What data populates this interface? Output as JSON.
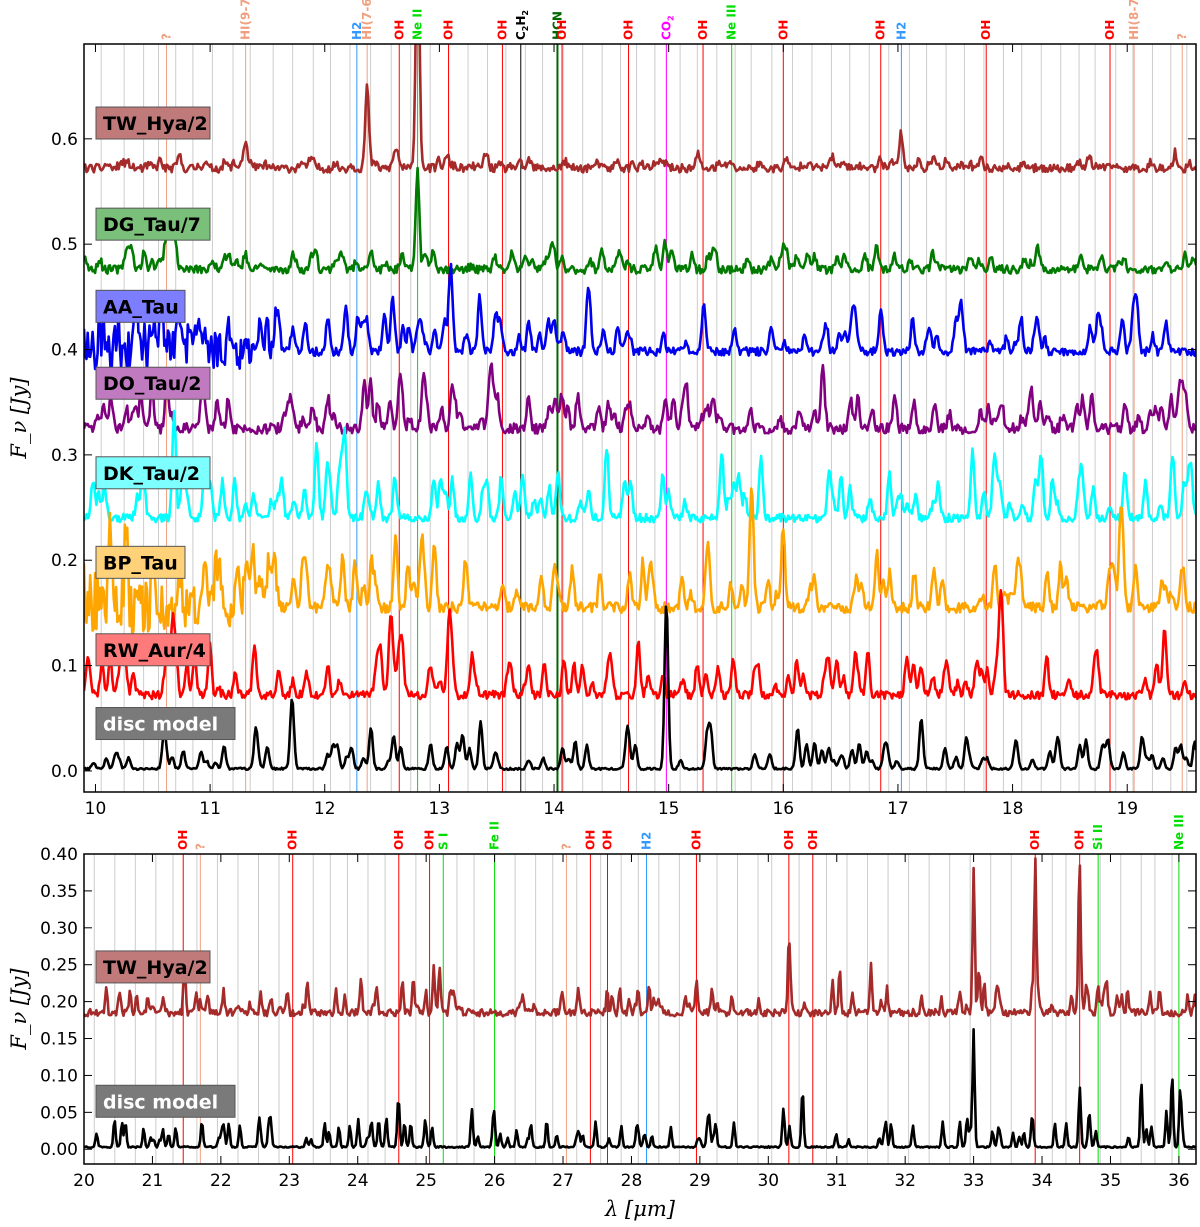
{
  "panels": [
    {
      "name": "top",
      "xlim": [
        9.9,
        19.6
      ],
      "ylim": [
        -0.02,
        0.69
      ],
      "xticks": [
        10,
        11,
        12,
        13,
        14,
        15,
        16,
        17,
        18,
        19
      ],
      "yticks": [
        0.0,
        0.1,
        0.2,
        0.3,
        0.4,
        0.5,
        0.6
      ],
      "ytick_labels": [
        "0.0",
        "0.1",
        "0.2",
        "0.3",
        "0.4",
        "0.5",
        "0.6"
      ],
      "ylabel": "F_ν [Jy]",
      "xlabel": "",
      "grey_lines": [
        10.05,
        10.25,
        10.42,
        10.55,
        10.7,
        10.85,
        11.02,
        11.2,
        11.35,
        11.55,
        11.72,
        11.9,
        12.05,
        12.22,
        12.4,
        12.58,
        12.75,
        12.92,
        13.08,
        13.25,
        13.42,
        13.58,
        13.75,
        13.9,
        14.08,
        14.25,
        14.42,
        14.58,
        14.72,
        14.88,
        15.1,
        15.25,
        15.42,
        15.58,
        15.72,
        15.9,
        16.08,
        16.25,
        16.42,
        16.58,
        16.75,
        16.92,
        17.1,
        17.25,
        17.42,
        17.58,
        17.75,
        17.92,
        18.08,
        18.25,
        18.42,
        18.58,
        18.72,
        18.9,
        19.05,
        19.22,
        19.38,
        19.52
      ],
      "species": [
        {
          "label": "?",
          "x": 10.62,
          "color": "#f0a080"
        },
        {
          "label": "HI(9-7)",
          "x": 11.31,
          "color": "#f0a080"
        },
        {
          "label": "H2",
          "x": 12.28,
          "color": "#3399ff"
        },
        {
          "label": "HI(7-6)",
          "x": 12.37,
          "color": "#f0a080"
        },
        {
          "label": "OH",
          "x": 12.65,
          "color": "#ff0000"
        },
        {
          "label": "Ne II",
          "x": 12.81,
          "color": "#00dd00"
        },
        {
          "label": "OH",
          "x": 13.08,
          "color": "#ff0000"
        },
        {
          "label": "OH",
          "x": 13.55,
          "color": "#ff0000"
        },
        {
          "label": "C2H2",
          "x": 13.71,
          "color": "#000000"
        },
        {
          "label": "HCN",
          "x": 14.03,
          "color": "#006600"
        },
        {
          "label": "OH",
          "x": 14.07,
          "color": "#ff0000"
        },
        {
          "label": "OH",
          "x": 14.65,
          "color": "#ff0000"
        },
        {
          "label": "CO2",
          "x": 14.98,
          "color": "#ff00ff"
        },
        {
          "label": "OH",
          "x": 15.3,
          "color": "#ff0000"
        },
        {
          "label": "Ne III",
          "x": 15.55,
          "color": "#00dd00"
        },
        {
          "label": "OH",
          "x": 16.0,
          "color": "#ff0000"
        },
        {
          "label": "OH",
          "x": 16.85,
          "color": "#ff0000"
        },
        {
          "label": "H2",
          "x": 17.03,
          "color": "#3399ff"
        },
        {
          "label": "OH",
          "x": 17.77,
          "color": "#ff0000"
        },
        {
          "label": "OH",
          "x": 18.85,
          "color": "#ff0000"
        },
        {
          "label": "HI(8-7)",
          "x": 19.06,
          "color": "#f0a080"
        },
        {
          "label": "?",
          "x": 19.48,
          "color": "#f0a080"
        }
      ],
      "series": [
        {
          "name": "TW_Hya/2",
          "color": "#a52a2a",
          "baseline": 0.572,
          "noise": 0.004,
          "lines_amp": 0.006,
          "peaks": [
            [
              11.31,
              0.025
            ],
            [
              12.37,
              0.07
            ],
            [
              12.81,
              0.24
            ],
            [
              17.03,
              0.03
            ]
          ],
          "seed": 11
        },
        {
          "name": "DG_Tau/7",
          "color": "#007a00",
          "baseline": 0.476,
          "noise": 0.004,
          "lines_amp": 0.012,
          "peaks": [
            [
              12.81,
              0.085
            ],
            [
              16.0,
              0.02
            ]
          ],
          "seed": 23
        },
        {
          "name": "AA_Tau",
          "color": "#0000ee",
          "baseline": 0.398,
          "noise": 0.004,
          "lines_amp": 0.025,
          "peaks": [
            [
              14.0,
              0.03
            ]
          ],
          "seed": 37,
          "noisy_until": 11.6
        },
        {
          "name": "DO_Tau/2",
          "color": "#800080",
          "baseline": 0.325,
          "noise": 0.005,
          "lines_amp": 0.025,
          "peaks": [
            [
              19.45,
              0.03
            ]
          ],
          "seed": 41
        },
        {
          "name": "DK_Tau/2",
          "color": "#00ffff",
          "baseline": 0.24,
          "noise": 0.004,
          "lines_amp": 0.035,
          "peaks": [
            [
              19.4,
              0.05
            ]
          ],
          "seed": 53
        },
        {
          "name": "BP_Tau",
          "color": "#ffa500",
          "baseline": 0.155,
          "noise": 0.005,
          "lines_amp": 0.035,
          "peaks": [
            [
              14.0,
              0.03
            ]
          ],
          "seed": 67,
          "noisy_until": 11.6
        },
        {
          "name": "RW_Aur/4",
          "color": "#ff0000",
          "baseline": 0.072,
          "noise": 0.004,
          "lines_amp": 0.03,
          "peaks": [
            [
              17.2,
              0.03
            ]
          ],
          "seed": 79
        },
        {
          "name": "disc model",
          "color": "#000000",
          "baseline": 0.002,
          "noise": 0.001,
          "lines_amp": 0.02,
          "peaks": [
            [
              14.98,
              0.15
            ],
            [
              11.72,
              0.025
            ],
            [
              17.2,
              0.025
            ]
          ],
          "seed": 97
        }
      ],
      "legend": [
        {
          "label": "TW_Hya/2",
          "bg": "#c07a7a"
        },
        {
          "label": "DG_Tau/7",
          "bg": "#7abf7a"
        },
        {
          "label": "AA_Tau",
          "bg": "#7d7dff"
        },
        {
          "label": "DO_Tau/2",
          "bg": "#c07ac0"
        },
        {
          "label": "DK_Tau/2",
          "bg": "#7dffff"
        },
        {
          "label": "BP_Tau",
          "bg": "#ffd27a"
        },
        {
          "label": "RW_Aur/4",
          "bg": "#ff7a7a"
        },
        {
          "label": "disc model",
          "bg": "#7a7a7a"
        }
      ]
    },
    {
      "name": "bottom",
      "xlim": [
        20.0,
        36.25
      ],
      "ylim": [
        -0.02,
        0.4
      ],
      "xticks": [
        20,
        21,
        22,
        23,
        24,
        25,
        26,
        27,
        28,
        29,
        30,
        31,
        32,
        33,
        34,
        35,
        36
      ],
      "yticks": [
        0.0,
        0.05,
        0.1,
        0.15,
        0.2,
        0.25,
        0.3,
        0.35,
        0.4
      ],
      "ytick_labels": [
        "0.00",
        "0.05",
        "0.10",
        "0.15",
        "0.20",
        "0.25",
        "0.30",
        "0.35",
        "0.40"
      ],
      "ylabel": "F_ν [Jy]",
      "xlabel": "λ [μm]",
      "grey_lines": [
        20.15,
        20.45,
        20.75,
        21.05,
        21.3,
        21.65,
        21.95,
        22.25,
        22.55,
        22.85,
        23.35,
        23.6,
        23.85,
        24.15,
        24.4,
        24.85,
        25.45,
        25.7,
        26.3,
        26.6,
        26.85,
        27.2,
        27.55,
        27.85,
        28.1,
        28.4,
        28.7,
        29.25,
        29.55,
        29.85,
        30.05,
        30.45,
        30.85,
        31.15,
        31.45,
        31.75,
        32.05,
        32.35,
        32.65,
        32.95,
        33.25,
        33.55,
        34.15,
        34.35,
        34.85,
        35.15,
        35.45,
        35.65,
        35.9
      ],
      "species": [
        {
          "label": "OH",
          "x": 21.45,
          "color": "#ff0000"
        },
        {
          "label": "?",
          "x": 21.7,
          "color": "#f0a080"
        },
        {
          "label": "OH",
          "x": 23.05,
          "color": "#ff0000"
        },
        {
          "label": "OH",
          "x": 24.6,
          "color": "#ff0000"
        },
        {
          "label": "OH",
          "x": 25.05,
          "color": "#ff0000"
        },
        {
          "label": "S I",
          "x": 25.25,
          "color": "#00dd00"
        },
        {
          "label": "Fe II",
          "x": 26.0,
          "color": "#00dd00"
        },
        {
          "label": "?",
          "x": 27.05,
          "color": "#f0a080"
        },
        {
          "label": "OH",
          "x": 27.4,
          "color": "#ff0000"
        },
        {
          "label": "OH",
          "x": 27.65,
          "color": "#ff0000"
        },
        {
          "label": "H2",
          "x": 28.22,
          "color": "#3399ff"
        },
        {
          "label": "OH",
          "x": 28.95,
          "color": "#ff0000"
        },
        {
          "label": "OH",
          "x": 30.3,
          "color": "#ff0000"
        },
        {
          "label": "OH",
          "x": 30.65,
          "color": "#ff0000"
        },
        {
          "label": "OH",
          "x": 33.9,
          "color": "#ff0000"
        },
        {
          "label": "OH",
          "x": 34.55,
          "color": "#ff0000"
        },
        {
          "label": "Si II",
          "x": 34.82,
          "color": "#00dd00"
        },
        {
          "label": "Ne III",
          "x": 36.0,
          "color": "#00dd00"
        }
      ],
      "series": [
        {
          "name": "TW_Hya/2",
          "color": "#a52a2a",
          "baseline": 0.185,
          "noise": 0.005,
          "lines_amp": 0.03,
          "peaks": [
            [
              33.0,
              0.15
            ],
            [
              33.9,
              0.19
            ],
            [
              34.55,
              0.19
            ],
            [
              30.3,
              0.1
            ],
            [
              25.2,
              0.05
            ]
          ],
          "seed": 131
        },
        {
          "name": "disc model",
          "color": "#000000",
          "baseline": 0.003,
          "noise": 0.001,
          "lines_amp": 0.03,
          "peaks": [
            [
              33.0,
              0.16
            ],
            [
              30.5,
              0.08
            ],
            [
              34.55,
              0.07
            ],
            [
              35.45,
              0.09
            ],
            [
              35.9,
              0.1
            ]
          ],
          "seed": 149
        }
      ],
      "legend": [
        {
          "label": "TW_Hya/2",
          "bg": "#c07a7a"
        },
        {
          "label": "disc model",
          "bg": "#7a7a7a"
        }
      ]
    }
  ],
  "chart_data": [
    {
      "type": "line",
      "title": "",
      "xlabel": "",
      "ylabel": "F_ν [Jy]",
      "xlim": [
        9.9,
        19.6
      ],
      "ylim": [
        -0.02,
        0.69
      ],
      "grid": false,
      "legend_position": "left",
      "series": [
        {
          "name": "TW_Hya/2",
          "baseline": 0.572
        },
        {
          "name": "DG_Tau/7",
          "baseline": 0.476
        },
        {
          "name": "AA_Tau",
          "baseline": 0.398
        },
        {
          "name": "DO_Tau/2",
          "baseline": 0.325
        },
        {
          "name": "DK_Tau/2",
          "baseline": 0.24
        },
        {
          "name": "BP_Tau",
          "baseline": 0.155
        },
        {
          "name": "RW_Aur/4",
          "baseline": 0.072
        },
        {
          "name": "disc model",
          "baseline": 0.002
        }
      ]
    },
    {
      "type": "line",
      "title": "",
      "xlabel": "λ [μm]",
      "ylabel": "F_ν [Jy]",
      "xlim": [
        20.0,
        36.25
      ],
      "ylim": [
        -0.02,
        0.4
      ],
      "grid": false,
      "legend_position": "left",
      "series": [
        {
          "name": "TW_Hya/2",
          "baseline": 0.185
        },
        {
          "name": "disc model",
          "baseline": 0.003
        }
      ]
    }
  ]
}
